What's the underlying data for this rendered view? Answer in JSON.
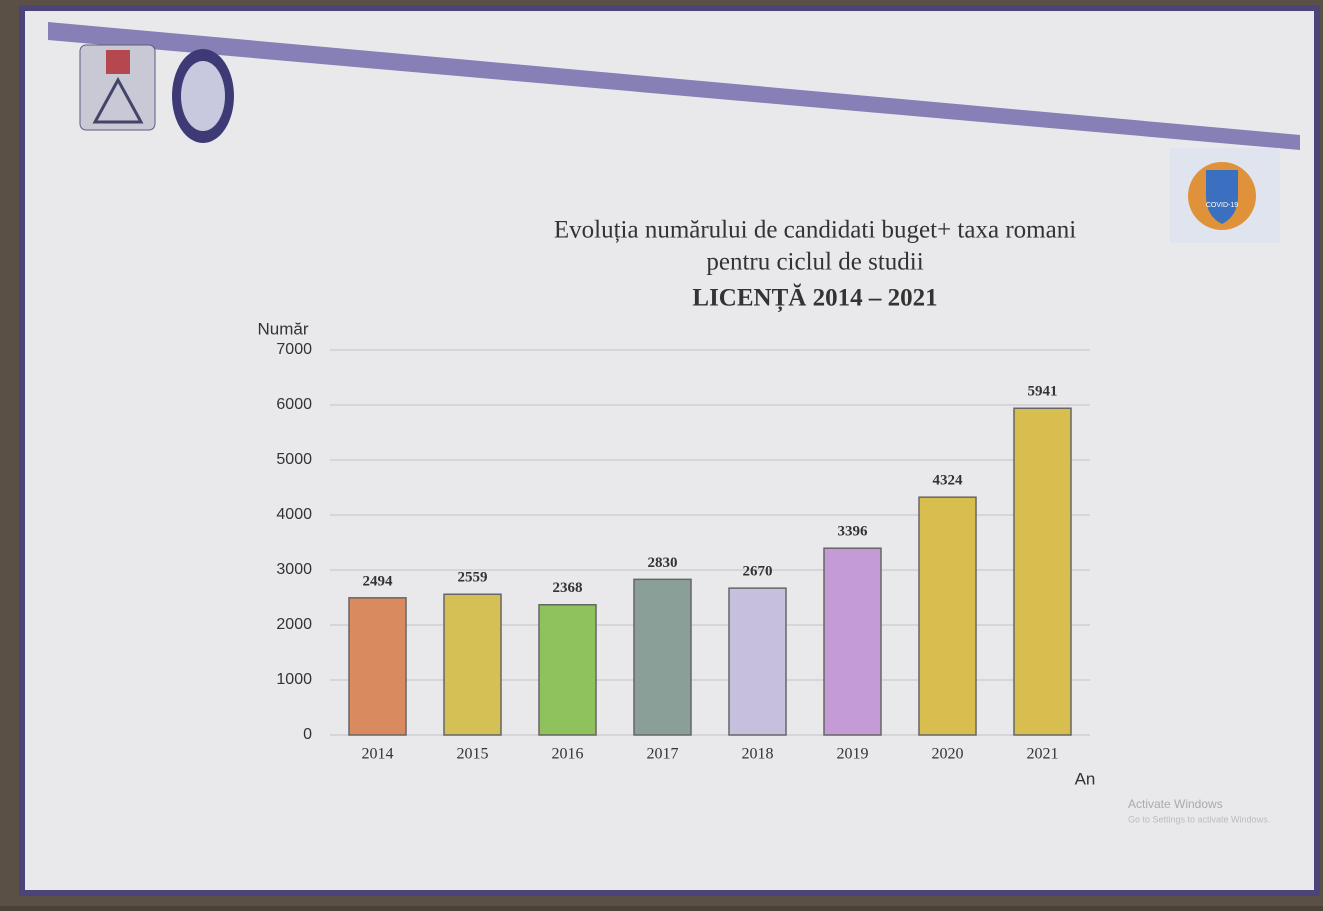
{
  "chart_data": {
    "type": "bar",
    "title": [
      "Evoluția numărului de candidati buget+ taxa romani",
      "pentru ciclul de studii"
    ],
    "subtitle": "LICENȚĂ 2014 – 2021",
    "y_label": "Număr",
    "x_label": "An",
    "categories": [
      "2014",
      "2015",
      "2016",
      "2017",
      "2018",
      "2019",
      "2020",
      "2021"
    ],
    "values": [
      2494,
      2559,
      2368,
      2830,
      2670,
      3396,
      4324,
      5941
    ],
    "colors": [
      "#d98a5e",
      "#d4c055",
      "#8fc15c",
      "#8b9f99",
      "#c6c0de",
      "#c59bd6",
      "#d7be4f",
      "#d7be4f"
    ],
    "ylim": [
      0,
      7000
    ],
    "yticks": [
      0,
      1000,
      2000,
      3000,
      4000,
      5000,
      6000,
      7000
    ],
    "grid": true
  },
  "watermark": {
    "title": "Activate Windows",
    "text": "Go to Settings to activate Windows."
  },
  "badge": "COVID-19"
}
